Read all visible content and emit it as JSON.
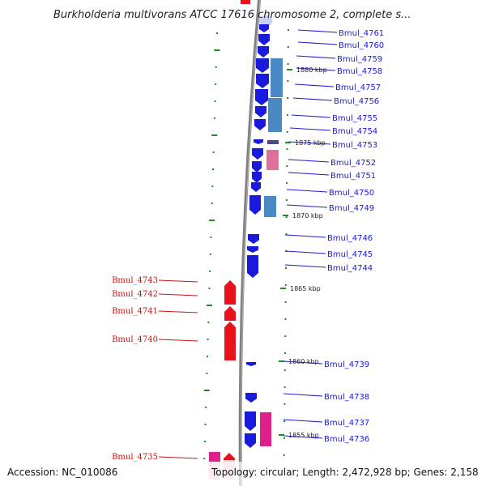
{
  "title": "Burkholderia multivorans ATCC 17616 chromosome 2, complete s...",
  "accession": "Accession: NC_010086",
  "topology": "Topology: circular; Length: 2,472,928 bp; Genes: 2,158",
  "colors": {
    "forward_gene": "#1a1adb",
    "reverse_gene": "#e8121c",
    "label_blue": "#1a1adb",
    "label_red": "#cc1111",
    "ruler": "#808080",
    "tick": "#228b22",
    "cds_blue": "#4a8ac4",
    "cds_pink": "#e0709a",
    "rna_magenta": "#e0208a"
  },
  "kbp_marks": [
    {
      "label": "1880 kbp"
    },
    {
      "label": "1875 kbp"
    },
    {
      "label": "1870 kbp"
    },
    {
      "label": "1865 kbp"
    },
    {
      "label": "1860 kbp"
    },
    {
      "label": "1855 kbp"
    }
  ],
  "right_genes": [
    {
      "label": "Bmul_4761"
    },
    {
      "label": "Bmul_4760"
    },
    {
      "label": "Bmul_4759"
    },
    {
      "label": "Bmul_4758"
    },
    {
      "label": "Bmul_4757"
    },
    {
      "label": "Bmul_4756"
    },
    {
      "label": "Bmul_4755"
    },
    {
      "label": "Bmul_4754"
    },
    {
      "label": "Bmul_4753"
    },
    {
      "label": "Bmul_4752"
    },
    {
      "label": "Bmul_4751"
    },
    {
      "label": "Bmul_4750"
    },
    {
      "label": "Bmul_4749"
    },
    {
      "label": "Bmul_4746"
    },
    {
      "label": "Bmul_4745"
    },
    {
      "label": "Bmul_4744"
    },
    {
      "label": "Bmul_4739"
    },
    {
      "label": "Bmul_4738"
    },
    {
      "label": "Bmul_4737"
    },
    {
      "label": "Bmul_4736"
    }
  ],
  "left_genes": [
    {
      "label": "Bmul_4743"
    },
    {
      "label": "Bmul_4742"
    },
    {
      "label": "Bmul_4741"
    },
    {
      "label": "Bmul_4740"
    },
    {
      "label": "Bmul_4735"
    }
  ]
}
